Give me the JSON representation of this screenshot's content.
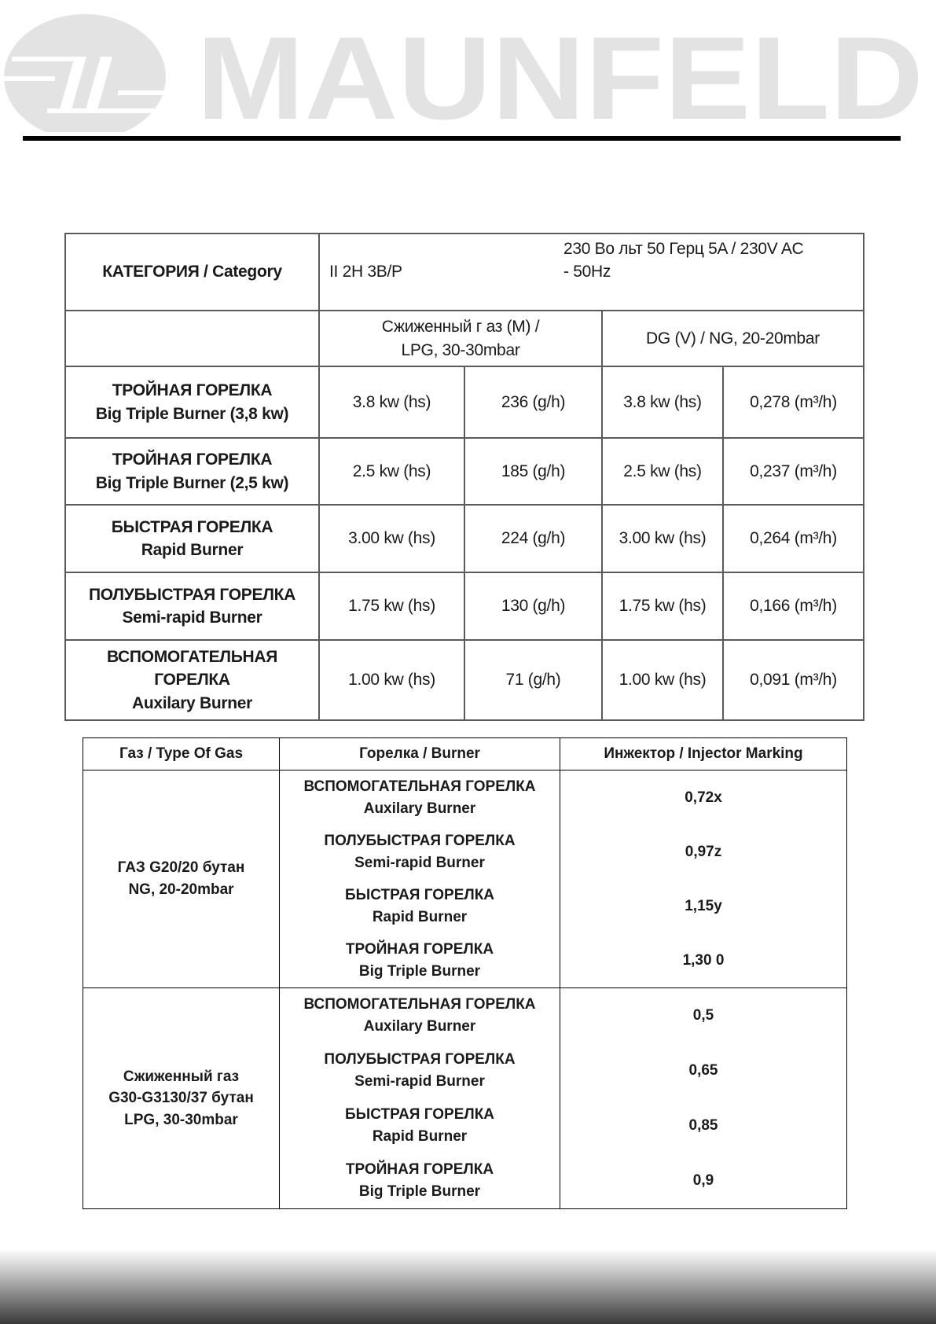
{
  "logo": {
    "text": "MAUNFELD",
    "color": "#e3e3e3"
  },
  "spec_table": {
    "category_label": "КАТЕГОРИЯ / Category",
    "category_value": "II 2H 3B/P",
    "power_supply": "230 Во льт  50 Герц 5A / 230V AC\n- 50Hz",
    "lpg_header": "Сжиженный г аз  (M) /\nLPG, 30-30mbar",
    "ng_header": "DG (V) / NG,   20-20mbar",
    "rows": [
      {
        "burner": "ТРОЙНАЯ ГОРЕЛКА\nBig Triple Burner (3,8 kw)",
        "lpg_power": "3.8 kw (hs)",
        "lpg_flow": "236 (g/h)",
        "ng_power": "3.8 kw (hs)",
        "ng_flow": "0,278 (m³/h)"
      },
      {
        "burner": "ТРОЙНАЯ ГОРЕЛКА\nBig Triple Burner (2,5 kw)",
        "lpg_power": "2.5 kw (hs)",
        "lpg_flow": "185 (g/h)",
        "ng_power": "2.5 kw (hs)",
        "ng_flow": "0,237 (m³/h)"
      },
      {
        "burner": "БЫСТРАЯ ГОРЕЛКА\nRapid Burner",
        "lpg_power": "3.00 kw (hs)",
        "lpg_flow": "224 (g/h)",
        "ng_power": "3.00 kw (hs)",
        "ng_flow": "0,264 (m³/h)"
      },
      {
        "burner": "ПОЛУБЫСТРАЯ ГОРЕЛКА\nSemi-rapid Burner",
        "lpg_power": "1.75 kw (hs)",
        "lpg_flow": "130 (g/h)",
        "ng_power": "1.75 kw (hs)",
        "ng_flow": "0,166 (m³/h)"
      },
      {
        "burner": "ВСПОМОГАТЕЛЬНАЯ\nГОРЕЛКА\nAuxilary Burner",
        "lpg_power": "1.00 kw (hs)",
        "lpg_flow": "71 (g/h)",
        "ng_power": "1.00 kw (hs)",
        "ng_flow": "0,091 (m³/h)"
      }
    ]
  },
  "injector_table": {
    "headers": [
      "Газ / Type Of Gas",
      "Горелка / Burner",
      "Инжектор / Injector Marking"
    ],
    "groups": [
      {
        "gas": "ГАЗ G20/20 бутан\nNG,   20-20mbar",
        "items": [
          {
            "burner": "ВСПОМОГАТЕЛЬНАЯ ГОРЕЛКА\nAuxilary Burner",
            "injector": "0,72x"
          },
          {
            "burner": "ПОЛУБЫСТРАЯ ГОРЕЛКА\nSemi-rapid Burner",
            "injector": "0,97z"
          },
          {
            "burner": "БЫСТРАЯ ГОРЕЛКА\nRapid Burner",
            "injector": "1,15y"
          },
          {
            "burner": "ТРОЙНАЯ ГОРЕЛКА\nBig Triple Burner",
            "injector": "1,30 0"
          }
        ]
      },
      {
        "gas": "Сжиженный газ\nG30-G3130/37 бутан\nLPG, 30-30mbar",
        "items": [
          {
            "burner": "ВСПОМОГАТЕЛЬНАЯ ГОРЕЛКА\nAuxilary Burner",
            "injector": "0,5"
          },
          {
            "burner": "ПОЛУБЫСТРАЯ ГОРЕЛКА\nSemi-rapid Burner",
            "injector": "0,65"
          },
          {
            "burner": "БЫСТРАЯ ГОРЕЛКА\nRapid Burner",
            "injector": "0,85"
          },
          {
            "burner": "ТРОЙНАЯ ГОРЕЛКА\nBig Triple Burner",
            "injector": "0,9"
          }
        ]
      }
    ]
  }
}
